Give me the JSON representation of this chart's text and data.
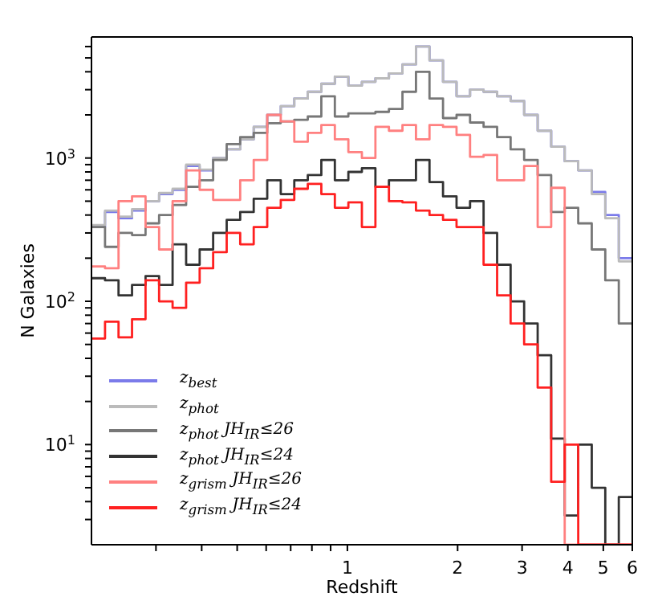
{
  "chart_data": {
    "type": "histogram",
    "xlabel": "Redshift",
    "ylabel": "N Galaxies",
    "log": "xy",
    "xlim": [
      0.2,
      6
    ],
    "ylim": [
      2,
      7000
    ],
    "xticks": [
      {
        "value": 0.3,
        "label": null
      },
      {
        "value": 0.4,
        "label": null
      },
      {
        "value": 0.5,
        "label": null
      },
      {
        "value": 0.6,
        "label": null
      },
      {
        "value": 0.7,
        "label": null
      },
      {
        "value": 0.8,
        "label": null
      },
      {
        "value": 0.9,
        "label": null
      },
      1,
      2,
      3,
      4,
      5,
      6
    ],
    "yticks": [
      {
        "value": 3,
        "label": null
      },
      {
        "value": 4,
        "label": null
      },
      {
        "value": 5,
        "label": null
      },
      {
        "value": 6,
        "label": null
      },
      {
        "value": 7,
        "label": null
      },
      {
        "value": 8,
        "label": null
      },
      {
        "value": 9,
        "label": null
      },
      {
        "value": 10,
        "label": "10$^{1}$"
      },
      {
        "value": 20,
        "label": null
      },
      {
        "value": 30,
        "label": null
      },
      {
        "value": 40,
        "label": null
      },
      {
        "value": 50,
        "label": null
      },
      {
        "value": 60,
        "label": null
      },
      {
        "value": 70,
        "label": null
      },
      {
        "value": 80,
        "label": null
      },
      {
        "value": 90,
        "label": null
      },
      {
        "value": 100,
        "label": "10$^{2}$"
      },
      {
        "value": 200,
        "label": null
      },
      {
        "value": 300,
        "label": null
      },
      {
        "value": 400,
        "label": null
      },
      {
        "value": 500,
        "label": null
      },
      {
        "value": 600,
        "label": null
      },
      {
        "value": 700,
        "label": null
      },
      {
        "value": 800,
        "label": null
      },
      {
        "value": 900,
        "label": null
      },
      {
        "value": 1000,
        "label": "10$^{3}$"
      },
      {
        "value": 2000,
        "label": null
      },
      {
        "value": 3000,
        "label": null
      },
      {
        "value": 4000,
        "label": null
      },
      {
        "value": 5000,
        "label": null
      },
      {
        "value": 6000,
        "label": null
      }
    ],
    "legend": "bottom left",
    "bins": [
      0.2,
      0.2178,
      0.2371,
      0.2581,
      0.281,
      0.306,
      0.3331,
      0.3627,
      0.3949,
      0.4299,
      0.4681,
      0.5096,
      0.5548,
      0.6041,
      0.6577,
      0.7161,
      0.7796,
      0.8488,
      0.9242,
      1.0062,
      1.0954,
      1.1927,
      1.2986,
      1.4138,
      1.5393,
      1.6759,
      1.8247,
      1.9866,
      2.1629,
      2.3549,
      2.564,
      2.7913,
      3.0391,
      3.3089,
      3.6026,
      3.9223,
      4.2705,
      4.6495,
      5.0622,
      5.5115,
      6.0
    ],
    "series": [
      {
        "name": "z$_{best}$",
        "color": "#7b7bea",
        "values": [
          330,
          420,
          380,
          430,
          500,
          560,
          600,
          880,
          820,
          1000,
          1150,
          1350,
          1650,
          2000,
          2300,
          2600,
          2900,
          3300,
          3700,
          3200,
          3400,
          3600,
          3900,
          4500,
          6000,
          4800,
          3400,
          2700,
          3000,
          2900,
          2700,
          2500,
          2000,
          1550,
          1200,
          950,
          820,
          580,
          400,
          200
        ]
      },
      {
        "name": "z$_{phot}$",
        "color": "#bbbbbb",
        "values": [
          340,
          430,
          390,
          440,
          500,
          570,
          610,
          900,
          830,
          1000,
          1150,
          1350,
          1650,
          2000,
          2300,
          2600,
          2900,
          3300,
          3700,
          3200,
          3400,
          3600,
          3900,
          4500,
          6000,
          4800,
          3400,
          2700,
          3000,
          2900,
          2700,
          2500,
          2000,
          1550,
          1200,
          950,
          820,
          560,
          380,
          190
        ]
      },
      {
        "name": "z$_{phot}$ JH$_{IR}$≤26",
        "color": "#777777",
        "values": [
          330,
          240,
          300,
          290,
          350,
          400,
          470,
          630,
          700,
          970,
          1250,
          1400,
          1500,
          1750,
          1800,
          1850,
          1950,
          2700,
          1950,
          2050,
          2050,
          2100,
          2200,
          2900,
          4000,
          2600,
          1900,
          2000,
          1770,
          1650,
          1400,
          1150,
          970,
          760,
          420,
          450,
          350,
          230,
          140,
          70
        ]
      },
      {
        "name": "z$_{phot}$ JH$_{IR}$≤24",
        "color": "#333333",
        "values": [
          145,
          140,
          110,
          130,
          150,
          130,
          250,
          180,
          230,
          300,
          370,
          420,
          520,
          700,
          560,
          700,
          760,
          970,
          700,
          800,
          850,
          630,
          700,
          700,
          970,
          680,
          540,
          450,
          500,
          300,
          180,
          100,
          70,
          42,
          11,
          3.2,
          10,
          5,
          null,
          4.3
        ]
      },
      {
        "name": "z$_{grism}$ JH$_{IR}$≤26",
        "color": "#ff8080",
        "values": [
          175,
          170,
          500,
          540,
          330,
          230,
          500,
          820,
          600,
          510,
          510,
          700,
          970,
          2000,
          1800,
          1300,
          1500,
          1700,
          1350,
          1100,
          1000,
          1650,
          1550,
          1700,
          1350,
          1700,
          1650,
          1450,
          1020,
          1050,
          700,
          700,
          880,
          330,
          620,
          null,
          null,
          null,
          null,
          null
        ]
      },
      {
        "name": "z$_{grism}$ JH$_{IR}$≤24",
        "color": "#ff2020",
        "values": [
          55,
          72,
          56,
          75,
          140,
          100,
          90,
          135,
          170,
          220,
          300,
          250,
          330,
          450,
          510,
          610,
          660,
          560,
          450,
          490,
          330,
          630,
          500,
          490,
          430,
          400,
          370,
          330,
          330,
          180,
          110,
          70,
          50,
          25,
          5.5,
          10,
          null,
          null,
          null,
          null
        ]
      }
    ]
  }
}
